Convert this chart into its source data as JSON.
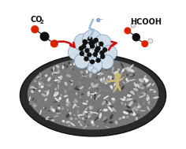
{
  "bg_color": "#ffffff",
  "cloud_color": "#d0dde8",
  "cloud_edge_color": "#7799bb",
  "arrow_color": "#cc1111",
  "dot_color": "#111111",
  "co2_label": "CO",
  "co2_sub": "2",
  "hcooh_label": "HCOOH",
  "lightning_color": "#99bbdd",
  "scientist_color": "#ccbb77",
  "foam_base": "#444444",
  "foam_light": "#e8e8e8"
}
